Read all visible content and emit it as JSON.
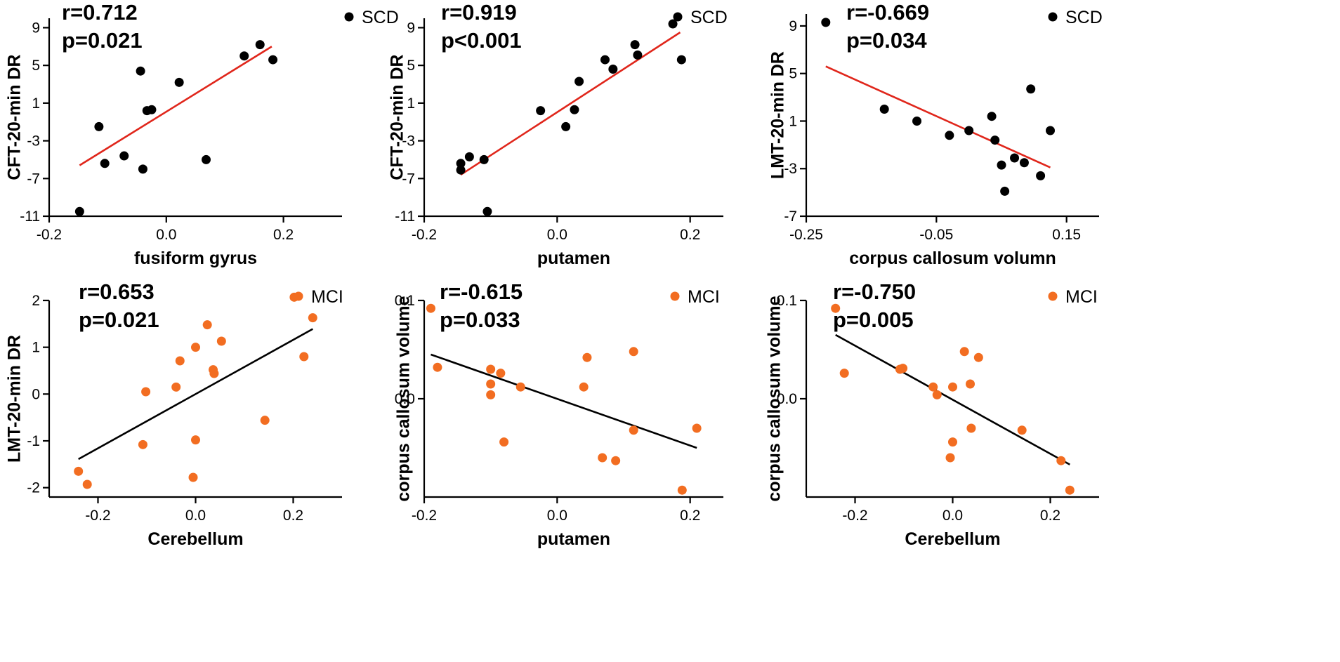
{
  "colors": {
    "scd_point": "#000000",
    "mci_point": "#f26d21",
    "scd_line": "#e0261b",
    "mci_line": "#000000"
  },
  "chart_data": [
    {
      "type": "scatter",
      "panel": "top-left",
      "group": "SCD",
      "legend": "SCD",
      "stats": [
        "r=0.712",
        "p=0.021"
      ],
      "xlabel": "fusiform gyrus",
      "ylabel": "CFT-20-min DR",
      "xlim": [
        -0.2,
        0.3
      ],
      "ylim": [
        -11,
        10
      ],
      "xticks": [
        -0.2,
        0.0,
        0.2
      ],
      "xtick_labels": [
        "-0.2",
        "0.0",
        "0.2"
      ],
      "yticks": [
        -11,
        -7,
        -3,
        1,
        5,
        9
      ],
      "ytick_labels": [
        "-11",
        "-7",
        "-3",
        "1",
        "5",
        "9"
      ],
      "x": [
        -0.148,
        -0.105,
        -0.115,
        -0.072,
        -0.044,
        -0.04,
        -0.033,
        -0.025,
        0.022,
        0.068,
        0.133,
        0.16,
        0.182
      ],
      "y": [
        -10.5,
        -5.4,
        -1.5,
        -4.6,
        4.4,
        -6.0,
        0.2,
        0.3,
        3.2,
        -5.0,
        6.0,
        7.2,
        5.6
      ],
      "fit": {
        "x": [
          -0.148,
          0.18
        ],
        "y": [
          -5.6,
          7.0
        ]
      }
    },
    {
      "type": "scatter",
      "panel": "top-middle",
      "group": "SCD",
      "legend": "SCD",
      "stats": [
        "r=0.919",
        "p<0.001"
      ],
      "xlabel": "putamen",
      "ylabel": "CFT-20-min DR",
      "xlim": [
        -0.2,
        0.25
      ],
      "ylim": [
        -11,
        10
      ],
      "xticks": [
        -0.2,
        0.0,
        0.2
      ],
      "xtick_labels": [
        "-0.2",
        "0.0",
        "0.2"
      ],
      "yticks": [
        -11,
        -7,
        -3,
        1,
        5,
        9
      ],
      "ytick_labels": [
        "-11",
        "-7",
        "-3",
        "1",
        "5",
        "9"
      ],
      "x": [
        -0.145,
        -0.145,
        -0.132,
        -0.11,
        -0.105,
        -0.025,
        0.013,
        0.026,
        0.033,
        0.072,
        0.084,
        0.117,
        0.121,
        0.174,
        0.187
      ],
      "y": [
        -6.1,
        -5.4,
        -4.7,
        -5.0,
        -10.5,
        0.2,
        -1.5,
        0.3,
        3.3,
        5.6,
        4.6,
        7.2,
        6.1,
        9.4,
        5.6
      ],
      "fit": {
        "x": [
          -0.145,
          0.185
        ],
        "y": [
          -6.6,
          8.5
        ]
      }
    },
    {
      "type": "scatter",
      "panel": "top-right",
      "group": "SCD",
      "legend": "SCD",
      "stats": [
        "r=-0.669",
        "p=0.034"
      ],
      "xlabel": "corpus callosum volumn",
      "ylabel": "LMT-20-min DR",
      "xlim": [
        -0.25,
        0.2
      ],
      "ylim": [
        -7,
        10
      ],
      "xticks": [
        -0.25,
        -0.05,
        0.15
      ],
      "xtick_labels": [
        "-0.25",
        "-0.05",
        "0.15"
      ],
      "yticks": [
        -7,
        -3,
        1,
        5,
        9
      ],
      "ytick_labels": [
        "-7",
        "-3",
        "1",
        "5",
        "9"
      ],
      "x": [
        -0.22,
        -0.13,
        -0.08,
        -0.03,
        0.0,
        0.035,
        0.04,
        0.05,
        0.055,
        0.07,
        0.085,
        0.095,
        0.11,
        0.125
      ],
      "y": [
        9.3,
        2.0,
        1.0,
        -0.2,
        0.2,
        1.4,
        -0.6,
        -2.7,
        -4.9,
        -2.1,
        -2.5,
        3.7,
        -3.6,
        0.2
      ],
      "fit": {
        "x": [
          -0.22,
          0.125
        ],
        "y": [
          5.6,
          -2.9
        ]
      }
    },
    {
      "type": "scatter",
      "panel": "bottom-left",
      "group": "MCI",
      "legend": "MCI",
      "stats": [
        "r=0.653",
        "p=0.021"
      ],
      "xlabel": "Cerebellum",
      "ylabel": "LMT-20-min DR",
      "xlim": [
        -0.3,
        0.3
      ],
      "ylim": [
        -2.2,
        2.0
      ],
      "xticks": [
        -0.2,
        0.0,
        0.2
      ],
      "xtick_labels": [
        "-0.2",
        "0.0",
        "0.2"
      ],
      "yticks": [
        -2,
        -1,
        0,
        1,
        2
      ],
      "ytick_labels": [
        "-2",
        "-1",
        "0",
        "1",
        "2"
      ],
      "x": [
        -0.24,
        -0.222,
        -0.108,
        -0.102,
        -0.04,
        -0.032,
        -0.005,
        0.0,
        0.0,
        0.024,
        0.036,
        0.038,
        0.053,
        0.142,
        0.202,
        0.222,
        0.24
      ],
      "y": [
        -1.65,
        -1.93,
        -1.08,
        0.05,
        0.15,
        0.71,
        -1.78,
        1.0,
        -0.98,
        1.48,
        0.52,
        0.44,
        1.13,
        -0.56,
        2.07,
        0.8,
        1.63
      ],
      "fit": {
        "x": [
          -0.24,
          0.24
        ],
        "y": [
          -1.39,
          1.39
        ]
      }
    },
    {
      "type": "scatter",
      "panel": "bottom-middle",
      "group": "MCI",
      "legend": "MCI",
      "stats": [
        "r=-0.615",
        "p=0.033"
      ],
      "xlabel": "putamen",
      "ylabel": "corpus callosum volume",
      "xlim": [
        -0.2,
        0.25
      ],
      "ylim": [
        -0.1,
        0.1
      ],
      "xticks": [
        -0.2,
        0.0,
        0.2
      ],
      "xtick_labels": [
        "-0.2",
        "0.0",
        "0.2"
      ],
      "yticks": [
        0.0,
        0.1
      ],
      "ytick_labels": [
        "0.0",
        "0.1"
      ],
      "x": [
        -0.19,
        -0.18,
        -0.1,
        -0.1,
        -0.1,
        -0.085,
        -0.08,
        -0.055,
        0.04,
        0.045,
        0.068,
        0.088,
        0.115,
        0.115,
        0.188,
        0.21
      ],
      "y": [
        0.092,
        0.032,
        0.03,
        0.015,
        0.004,
        0.026,
        -0.044,
        0.012,
        0.012,
        0.042,
        -0.06,
        -0.063,
        0.048,
        -0.032,
        -0.093,
        -0.03
      ],
      "fit": {
        "x": [
          -0.19,
          0.21
        ],
        "y": [
          0.045,
          -0.05
        ]
      }
    },
    {
      "type": "scatter",
      "panel": "bottom-right",
      "group": "MCI",
      "legend": "MCI",
      "stats": [
        "r=-0.750",
        "p=0.005"
      ],
      "xlabel": "Cerebellum",
      "ylabel": "corpus callosum volume",
      "xlim": [
        -0.3,
        0.3
      ],
      "ylim": [
        -0.1,
        0.1
      ],
      "xticks": [
        -0.2,
        0.0,
        0.2
      ],
      "xtick_labels": [
        "-0.2",
        "0.0",
        "0.2"
      ],
      "yticks": [
        0.0,
        0.1
      ],
      "ytick_labels": [
        "0.0",
        "0.1"
      ],
      "x": [
        -0.24,
        -0.222,
        -0.108,
        -0.102,
        -0.04,
        -0.032,
        -0.005,
        0.0,
        0.0,
        0.024,
        0.036,
        0.038,
        0.053,
        0.142,
        0.222,
        0.24
      ],
      "y": [
        0.092,
        0.026,
        0.03,
        0.031,
        0.012,
        0.004,
        -0.06,
        0.012,
        -0.044,
        0.048,
        0.015,
        -0.03,
        0.042,
        -0.032,
        -0.063,
        -0.093
      ],
      "fit": {
        "x": [
          -0.24,
          0.24
        ],
        "y": [
          0.065,
          -0.067
        ]
      }
    }
  ]
}
